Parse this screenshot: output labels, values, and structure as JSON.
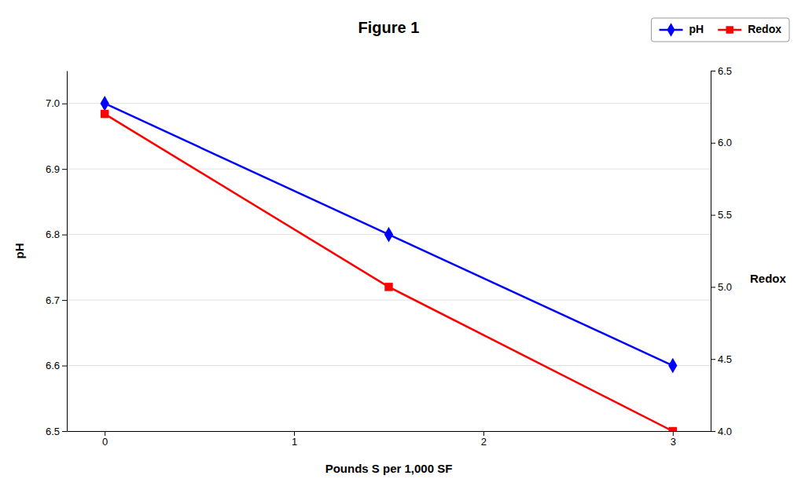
{
  "chart_data": {
    "type": "line",
    "title": "Figure 1",
    "xlabel": "Pounds S per 1,000 SF",
    "ylabel": "pH",
    "y2label": "Redox",
    "x": [
      0,
      1.5,
      3
    ],
    "xlim": [
      -0.2,
      3.2
    ],
    "xticks": [
      0,
      1,
      2,
      3
    ],
    "ylim": [
      6.5,
      7.05
    ],
    "yticks": [
      6.5,
      6.6,
      6.7,
      6.8,
      6.9,
      {
        "value": 7.0,
        "label": "7.0"
      }
    ],
    "y2lim": [
      4.0,
      6.5
    ],
    "y2ticks": [
      {
        "value": 4.0,
        "label": "4.0"
      },
      4.5,
      {
        "value": 5.0,
        "label": "5.0"
      },
      5.5,
      {
        "value": 6.0,
        "label": "6.0"
      },
      6.5
    ],
    "grid": true,
    "legend": "top-right",
    "series": [
      {
        "name": "pH",
        "color": "#0000FF",
        "marker": "diamond",
        "values": [
          7.0,
          6.8,
          6.6
        ]
      },
      {
        "name": "Redox",
        "color": "#FF0000",
        "marker": "square",
        "axis": "y2",
        "values": [
          6.2,
          5.0,
          4.0
        ]
      }
    ]
  }
}
